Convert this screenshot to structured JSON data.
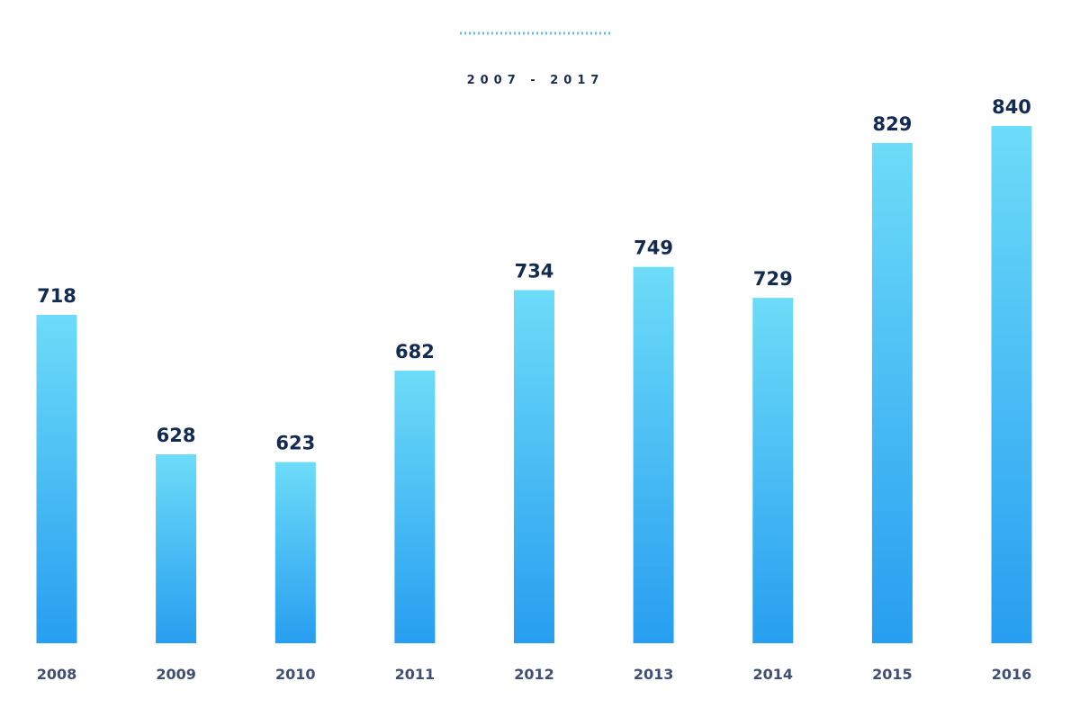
{
  "chart_data": {
    "type": "bar",
    "title": "",
    "subtitle": "2007 - 2017",
    "categories": [
      "2008",
      "2009",
      "2010",
      "2011",
      "2012",
      "2013",
      "2014",
      "2015",
      "2016"
    ],
    "values": [
      718,
      628,
      623,
      682,
      734,
      749,
      729,
      829,
      840
    ],
    "xlabel": "",
    "ylabel": "",
    "ylim": [
      506,
      840
    ],
    "grid": false,
    "legend": "none",
    "data_labels": [
      "718",
      "628",
      "623",
      "682",
      "734",
      "749",
      "729",
      "829",
      "840"
    ],
    "colors": {
      "bar_top": "#6ddcf8",
      "bar_bottom": "#279ef0",
      "divider": "#5fc3e8",
      "value_text": "#132a52",
      "tick_text": "#3f4f72"
    }
  }
}
